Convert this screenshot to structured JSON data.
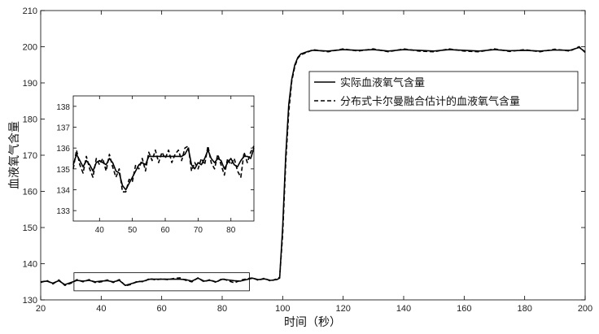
{
  "chart_data": {
    "type": "line",
    "title": "",
    "xlabel": "时间（秒）",
    "ylabel": "血液氧气含量",
    "xlim": [
      20,
      200
    ],
    "ylim": [
      130,
      210
    ],
    "xticks": [
      20,
      40,
      60,
      80,
      100,
      120,
      140,
      160,
      180,
      200
    ],
    "yticks": [
      130,
      140,
      150,
      160,
      170,
      180,
      190,
      200,
      210
    ],
    "grid": false,
    "legend_position": "top-right",
    "series": [
      {
        "name": "实际血液氧气含量",
        "style": "solid",
        "color": "#000000",
        "x": [
          20,
          22,
          24,
          26,
          28,
          30,
          32,
          34,
          36,
          38,
          40,
          42,
          44,
          46,
          48,
          50,
          52,
          54,
          56,
          58,
          60,
          62,
          64,
          66,
          68,
          70,
          72,
          74,
          76,
          78,
          80,
          82,
          84,
          86,
          88,
          90,
          92,
          94,
          96,
          98,
          99,
          100,
          101,
          102,
          103,
          104,
          105,
          106,
          108,
          110,
          115,
          120,
          125,
          130,
          135,
          140,
          145,
          150,
          155,
          160,
          165,
          170,
          175,
          180,
          185,
          190,
          195,
          198,
          200
        ],
        "y": [
          135.0,
          135.2,
          134.6,
          135.3,
          134.2,
          134.8,
          135.4,
          135.2,
          135.4,
          135.0,
          135.2,
          135.3,
          135.0,
          135.4,
          134.0,
          134.5,
          135.0,
          135.2,
          135.7,
          135.7,
          135.7,
          135.7,
          135.7,
          135.7,
          135.6,
          135.2,
          136.0,
          135.2,
          135.4,
          135.0,
          135.7,
          135.5,
          135.3,
          135.2,
          135.6,
          136.0,
          135.6,
          135.8,
          135.4,
          135.6,
          136.0,
          150.0,
          170.0,
          184.0,
          191.0,
          195.0,
          197.0,
          198.0,
          198.6,
          199.0,
          198.8,
          199.2,
          199.0,
          199.2,
          198.8,
          199.2,
          199.0,
          198.8,
          199.2,
          199.0,
          198.8,
          199.2,
          198.9,
          199.0,
          198.8,
          199.1,
          199.0,
          199.8,
          198.6
        ]
      },
      {
        "name": "分布式卡尔曼融合估计的血液氧气含量",
        "style": "dashed",
        "color": "#000000",
        "x": [
          20,
          22,
          24,
          26,
          28,
          30,
          32,
          34,
          36,
          38,
          40,
          42,
          44,
          46,
          48,
          50,
          52,
          54,
          56,
          58,
          60,
          62,
          64,
          66,
          68,
          70,
          72,
          74,
          76,
          78,
          80,
          82,
          84,
          86,
          88,
          90,
          92,
          94,
          96,
          98,
          99,
          100,
          101,
          102,
          103,
          104,
          105,
          106,
          108,
          110,
          115,
          120,
          125,
          130,
          135,
          140,
          145,
          150,
          155,
          160,
          165,
          170,
          175,
          180,
          185,
          190,
          195,
          198,
          200
        ],
        "y": [
          134.8,
          135.4,
          134.4,
          135.5,
          134.0,
          134.6,
          135.6,
          135.0,
          135.6,
          134.8,
          135.0,
          135.5,
          134.8,
          135.6,
          133.9,
          134.3,
          135.2,
          135.0,
          135.9,
          135.5,
          135.8,
          135.6,
          135.9,
          136.1,
          135.4,
          135.0,
          136.1,
          135.0,
          135.6,
          134.8,
          135.9,
          135.3,
          134.7,
          135.4,
          135.8,
          136.1,
          135.4,
          136.0,
          135.2,
          135.8,
          136.2,
          148.0,
          168.0,
          182.0,
          190.5,
          194.5,
          196.8,
          197.8,
          198.4,
          199.2,
          198.6,
          199.4,
          198.8,
          199.4,
          198.6,
          199.4,
          198.8,
          198.6,
          199.4,
          198.8,
          198.6,
          199.4,
          198.7,
          199.2,
          198.6,
          199.3,
          198.8,
          200.0,
          198.4
        ]
      }
    ],
    "highlight_box": {
      "x": [
        31,
        89
      ],
      "y": [
        132.5,
        137.5
      ]
    },
    "inset": {
      "xlim": [
        32,
        87
      ],
      "ylim": [
        132.5,
        138.5
      ],
      "xticks": [
        40,
        50,
        60,
        70,
        80
      ],
      "yticks": [
        133,
        134,
        135,
        136,
        137,
        138
      ],
      "series": [
        {
          "name": "实际血液氧气含量",
          "style": "solid",
          "x": [
            32,
            33,
            34,
            35,
            36,
            37,
            38,
            39,
            40,
            41,
            42,
            43,
            44,
            45,
            46,
            47,
            48,
            49,
            50,
            51,
            52,
            53,
            54,
            55,
            56,
            57,
            58,
            59,
            60,
            61,
            62,
            63,
            64,
            65,
            66,
            67,
            68,
            69,
            70,
            71,
            72,
            73,
            74,
            75,
            76,
            77,
            78,
            79,
            80,
            81,
            82,
            83,
            84,
            85,
            86,
            87
          ],
          "y": [
            135.2,
            135.7,
            135.4,
            135.1,
            135.4,
            135.2,
            134.9,
            135.3,
            135.4,
            135.3,
            135.2,
            135.5,
            135.3,
            134.9,
            134.8,
            134.2,
            134.0,
            134.3,
            134.6,
            134.9,
            135.2,
            135.3,
            135.2,
            135.6,
            135.6,
            135.6,
            135.6,
            135.6,
            135.6,
            135.6,
            135.6,
            135.6,
            135.6,
            135.6,
            135.7,
            136.0,
            135.2,
            135.0,
            135.3,
            135.2,
            135.5,
            135.9,
            135.5,
            135.3,
            135.5,
            135.4,
            135.0,
            135.3,
            135.5,
            135.2,
            135.1,
            135.4,
            135.6,
            135.6,
            135.5,
            136.0
          ]
        },
        {
          "name": "分布式卡尔曼融合估计的血液氧气含量",
          "style": "dashed",
          "x": [
            32,
            33,
            34,
            35,
            36,
            37,
            38,
            39,
            40,
            41,
            42,
            43,
            44,
            45,
            46,
            47,
            48,
            49,
            50,
            51,
            52,
            53,
            54,
            55,
            56,
            57,
            58,
            59,
            60,
            61,
            62,
            63,
            64,
            65,
            66,
            67,
            68,
            69,
            70,
            71,
            72,
            73,
            74,
            75,
            76,
            77,
            78,
            79,
            80,
            81,
            82,
            83,
            84,
            85,
            86,
            87
          ],
          "y": [
            135.0,
            135.9,
            135.2,
            134.8,
            135.6,
            135.0,
            134.6,
            135.5,
            135.2,
            135.5,
            134.9,
            135.7,
            135.1,
            134.6,
            135.0,
            133.9,
            133.9,
            134.5,
            134.4,
            135.2,
            135.0,
            135.5,
            134.9,
            135.8,
            135.4,
            135.9,
            135.3,
            135.8,
            135.5,
            135.9,
            135.3,
            135.7,
            135.9,
            135.4,
            136.0,
            136.1,
            134.9,
            135.3,
            135.0,
            135.5,
            135.2,
            136.1,
            135.3,
            135.0,
            135.7,
            135.2,
            134.7,
            135.5,
            135.2,
            135.5,
            134.9,
            134.6,
            135.8,
            135.3,
            135.8,
            136.1
          ]
        }
      ]
    }
  }
}
